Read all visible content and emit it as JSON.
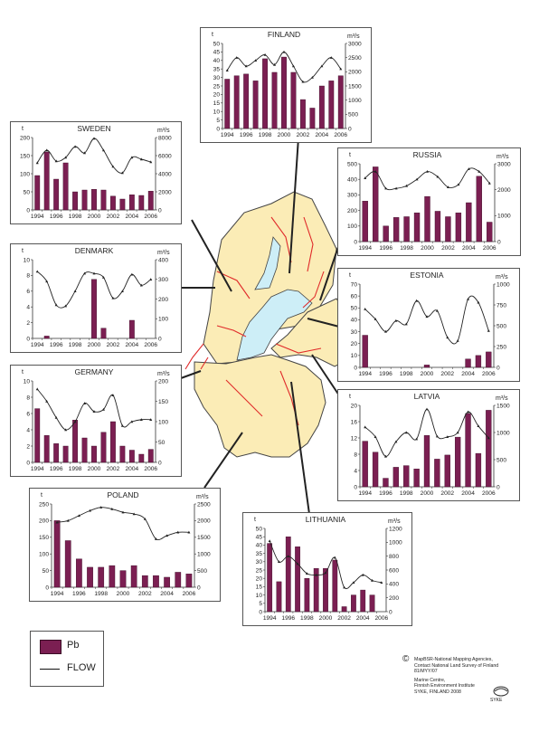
{
  "legend": {
    "bar_label": "Pb",
    "line_label": "FLOW"
  },
  "credits": {
    "copyright": "©",
    "lines": [
      "MapBSR-National Mapping Agencies,",
      "Contact National Land Survey of Finland",
      "81/MYY/07",
      "Marine Centre,",
      "Finnish Environment Institute",
      "SYKE, FINLAND 2008"
    ],
    "logo_text": "SYKE"
  },
  "colors": {
    "bar": "#7b1f52",
    "land": "#fbecb6",
    "sea": "#cdeef7",
    "rivers": "#e02a2a",
    "line": "#222222"
  },
  "chart_data": [
    {
      "id": "finland",
      "type": "bar+line",
      "title": "FINLAND",
      "left_unit": "t",
      "right_unit": "m³/s",
      "categories": [
        1994,
        1995,
        1996,
        1997,
        1998,
        1999,
        2000,
        2001,
        2002,
        2003,
        2004,
        2005,
        2006
      ],
      "x_tick_labels": [
        "1994",
        "1996",
        "1998",
        "2000",
        "2002",
        "2004",
        "2006"
      ],
      "ylim_left": [
        0,
        50
      ],
      "yticks_left": [
        0,
        5,
        10,
        15,
        20,
        25,
        30,
        35,
        40,
        45,
        50
      ],
      "ylim_right": [
        0,
        3000
      ],
      "yticks_right": [
        0,
        500,
        1000,
        1500,
        2000,
        2500,
        3000
      ],
      "series": [
        {
          "name": "Pb",
          "axis": "left",
          "values": [
            29,
            31,
            32,
            28,
            41,
            33,
            42,
            33,
            17,
            12,
            25,
            28,
            31
          ]
        },
        {
          "name": "FLOW",
          "axis": "right",
          "values": [
            2050,
            2500,
            2200,
            2400,
            2600,
            2250,
            2700,
            2200,
            1650,
            1800,
            2200,
            2500,
            2100
          ]
        }
      ]
    },
    {
      "id": "sweden",
      "type": "bar+line",
      "title": "SWEDEN",
      "left_unit": "t",
      "right_unit": "m³/s",
      "categories": [
        1994,
        1995,
        1996,
        1997,
        1998,
        1999,
        2000,
        2001,
        2002,
        2003,
        2004,
        2005,
        2006
      ],
      "x_tick_labels": [
        "1994",
        "1996",
        "1998",
        "2000",
        "2002",
        "2004",
        "2006"
      ],
      "ylim_left": [
        0,
        200
      ],
      "yticks_left": [
        0,
        50,
        100,
        150,
        200
      ],
      "ylim_right": [
        0,
        8000
      ],
      "yticks_right": [
        0,
        2000,
        4000,
        6000,
        8000
      ],
      "series": [
        {
          "name": "Pb",
          "axis": "left",
          "values": [
            95,
            160,
            85,
            130,
            50,
            55,
            57,
            55,
            38,
            30,
            42,
            40,
            52
          ]
        },
        {
          "name": "FLOW",
          "axis": "right",
          "values": [
            5200,
            6600,
            5400,
            5800,
            7000,
            6300,
            7900,
            6600,
            4800,
            4100,
            5800,
            5600,
            5300
          ]
        }
      ]
    },
    {
      "id": "russia",
      "type": "bar+line",
      "title": "RUSSIA",
      "left_unit": "t",
      "right_unit": "m³/s",
      "categories": [
        1994,
        1995,
        1996,
        1997,
        1998,
        1999,
        2000,
        2001,
        2002,
        2003,
        2004,
        2005,
        2006
      ],
      "x_tick_labels": [
        "1994",
        "1996",
        "1998",
        "2000",
        "2002",
        "2004",
        "2006"
      ],
      "ylim_left": [
        0,
        500
      ],
      "yticks_left": [
        0,
        100,
        200,
        300,
        400,
        500
      ],
      "ylim_right": [
        0,
        3000
      ],
      "yticks_right": [
        0,
        1000,
        2000,
        3000
      ],
      "series": [
        {
          "name": "Pb",
          "axis": "left",
          "values": [
            260,
            480,
            100,
            155,
            160,
            185,
            290,
            195,
            160,
            185,
            250,
            420,
            125
          ]
        },
        {
          "name": "FLOW",
          "axis": "right",
          "values": [
            2450,
            2700,
            2050,
            2050,
            2150,
            2400,
            2700,
            2500,
            2100,
            2200,
            2800,
            2700,
            2250
          ]
        }
      ]
    },
    {
      "id": "denmark",
      "type": "bar+line",
      "title": "DENMARK",
      "left_unit": "t",
      "right_unit": "m³/s",
      "categories": [
        1994,
        1995,
        1996,
        1997,
        1998,
        1999,
        2000,
        2001,
        2002,
        2003,
        2004,
        2005,
        2006
      ],
      "x_tick_labels": [
        "1994",
        "1996",
        "1998",
        "2000",
        "2002",
        "2004",
        "2006"
      ],
      "ylim_left": [
        0,
        10
      ],
      "yticks_left": [
        0,
        2,
        4,
        6,
        8,
        10
      ],
      "ylim_right": [
        0,
        400
      ],
      "yticks_right": [
        0,
        100,
        200,
        300,
        400
      ],
      "series": [
        {
          "name": "Pb",
          "axis": "left",
          "values": [
            0,
            0.3,
            0,
            0,
            0,
            0,
            7.5,
            1.3,
            0,
            0,
            2.3,
            0,
            0
          ]
        },
        {
          "name": "FLOW",
          "axis": "right",
          "values": [
            340,
            290,
            170,
            165,
            240,
            330,
            330,
            310,
            205,
            240,
            325,
            270,
            300
          ]
        }
      ]
    },
    {
      "id": "estonia",
      "type": "bar+line",
      "title": "ESTONIA",
      "left_unit": "t",
      "right_unit": "m³/s",
      "categories": [
        1994,
        1995,
        1996,
        1997,
        1998,
        1999,
        2000,
        2001,
        2002,
        2003,
        2004,
        2005,
        2006
      ],
      "x_tick_labels": [
        "1994",
        "1996",
        "1998",
        "2000",
        "2002",
        "2004",
        "2006"
      ],
      "ylim_left": [
        0,
        70
      ],
      "yticks_left": [
        0,
        10,
        20,
        30,
        40,
        50,
        60,
        70
      ],
      "ylim_right": [
        0,
        1000
      ],
      "yticks_right": [
        0,
        250,
        500,
        750,
        1000
      ],
      "series": [
        {
          "name": "Pb",
          "axis": "left",
          "values": [
            27,
            0,
            0,
            0,
            0,
            0,
            2,
            0,
            0,
            0,
            7,
            10,
            13
          ]
        },
        {
          "name": "FLOW",
          "axis": "right",
          "values": [
            700,
            580,
            430,
            560,
            520,
            800,
            610,
            680,
            360,
            320,
            820,
            780,
            440
          ]
        }
      ]
    },
    {
      "id": "germany",
      "type": "bar+line",
      "title": "GERMANY",
      "left_unit": "t",
      "right_unit": "m³/s",
      "categories": [
        1994,
        1995,
        1996,
        1997,
        1998,
        1999,
        2000,
        2001,
        2002,
        2003,
        2004,
        2005,
        2006
      ],
      "x_tick_labels": [
        "1994",
        "1996",
        "1998",
        "2000",
        "2002",
        "2004",
        "2006"
      ],
      "ylim_left": [
        0,
        10
      ],
      "yticks_left": [
        0,
        2,
        4,
        6,
        8,
        10
      ],
      "ylim_right": [
        0,
        200
      ],
      "yticks_right": [
        0,
        50,
        100,
        150,
        200
      ],
      "series": [
        {
          "name": "Pb",
          "axis": "left",
          "values": [
            6.6,
            3.3,
            2.3,
            2,
            5.2,
            3,
            2,
            3.7,
            5,
            2,
            1.5,
            1,
            1.6
          ]
        },
        {
          "name": "FLOW",
          "axis": "right",
          "values": [
            180,
            150,
            110,
            80,
            100,
            145,
            125,
            130,
            165,
            90,
            100,
            105,
            105
          ]
        }
      ]
    },
    {
      "id": "latvia",
      "type": "bar+line",
      "title": "LATVIA",
      "left_unit": "t",
      "right_unit": "m³/s",
      "categories": [
        1994,
        1995,
        1996,
        1997,
        1998,
        1999,
        2000,
        2001,
        2002,
        2003,
        2004,
        2005,
        2006
      ],
      "x_tick_labels": [
        "1994",
        "1996",
        "1998",
        "2000",
        "2002",
        "2004",
        "2006"
      ],
      "ylim_left": [
        0,
        20
      ],
      "yticks_left": [
        0,
        4,
        8,
        12,
        16,
        20
      ],
      "ylim_right": [
        0,
        1500
      ],
      "yticks_right": [
        0,
        500,
        1000,
        1500
      ],
      "series": [
        {
          "name": "Pb",
          "axis": "left",
          "values": [
            11.2,
            8.5,
            2.1,
            4.8,
            5.2,
            4.4,
            12.6,
            6.8,
            7.8,
            12.2,
            18,
            8.2,
            18.8
          ]
        },
        {
          "name": "FLOW",
          "axis": "right",
          "values": [
            1100,
            920,
            560,
            830,
            1000,
            880,
            1430,
            930,
            920,
            1000,
            1380,
            1120,
            900
          ]
        }
      ]
    },
    {
      "id": "poland",
      "type": "bar+line",
      "title": "POLAND",
      "left_unit": "t",
      "right_unit": "m³/s",
      "categories": [
        1994,
        1995,
        1996,
        1997,
        1998,
        1999,
        2000,
        2001,
        2002,
        2003,
        2004,
        2005,
        2006
      ],
      "x_tick_labels": [
        "1994",
        "1996",
        "1998",
        "2000",
        "2002",
        "2004",
        "2006"
      ],
      "ylim_left": [
        0,
        250
      ],
      "yticks_left": [
        0,
        50,
        100,
        150,
        200,
        250
      ],
      "ylim_right": [
        0,
        2500
      ],
      "yticks_right": [
        0,
        500,
        1000,
        1500,
        2000,
        2500
      ],
      "series": [
        {
          "name": "Pb",
          "axis": "left",
          "values": [
            200,
            140,
            85,
            60,
            60,
            65,
            50,
            65,
            35,
            35,
            30,
            45,
            40
          ]
        },
        {
          "name": "FLOW",
          "axis": "right",
          "values": [
            1950,
            2000,
            2150,
            2300,
            2400,
            2350,
            2250,
            2200,
            2050,
            1450,
            1550,
            1650,
            1650
          ]
        }
      ]
    },
    {
      "id": "lithuania",
      "type": "bar+line",
      "title": "LITHUANIA",
      "left_unit": "t",
      "right_unit": "m³/s",
      "categories": [
        1994,
        1995,
        1996,
        1997,
        1998,
        1999,
        2000,
        2001,
        2002,
        2003,
        2004,
        2005,
        2006
      ],
      "x_tick_labels": [
        "1994",
        "1996",
        "1998",
        "2000",
        "2002",
        "2004",
        "2006"
      ],
      "ylim_left": [
        0,
        50
      ],
      "yticks_left": [
        0,
        5,
        10,
        15,
        20,
        25,
        30,
        35,
        40,
        45,
        50
      ],
      "ylim_right": [
        0,
        1200
      ],
      "yticks_right": [
        0,
        200,
        400,
        600,
        800,
        1000,
        1200
      ],
      "series": [
        {
          "name": "Pb",
          "axis": "left",
          "values": [
            41,
            18,
            45,
            39,
            20,
            26,
            26,
            31,
            3,
            10,
            13,
            10,
            0
          ]
        },
        {
          "name": "FLOW",
          "axis": "right",
          "values": [
            1020,
            720,
            800,
            690,
            550,
            530,
            560,
            780,
            350,
            420,
            530,
            450,
            420
          ]
        }
      ]
    }
  ]
}
